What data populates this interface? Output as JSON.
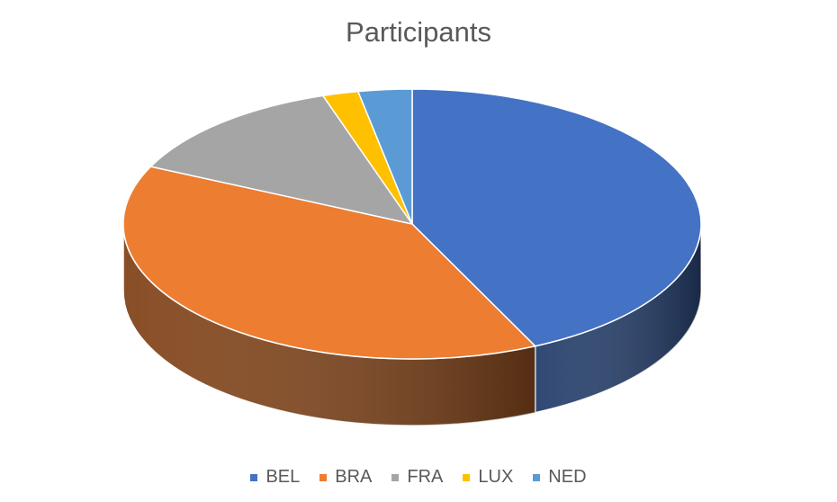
{
  "chart_data": {
    "type": "pie",
    "title": "Participants",
    "categories": [
      "BEL",
      "BRA",
      "FRA",
      "LUX",
      "NED"
    ],
    "values": [
      43,
      39,
      13,
      2,
      3
    ],
    "colors": [
      "#4472C4",
      "#ED7D31",
      "#A5A5A5",
      "#FFC000",
      "#5B9BD5"
    ],
    "style": "3d",
    "legend_position": "bottom"
  }
}
